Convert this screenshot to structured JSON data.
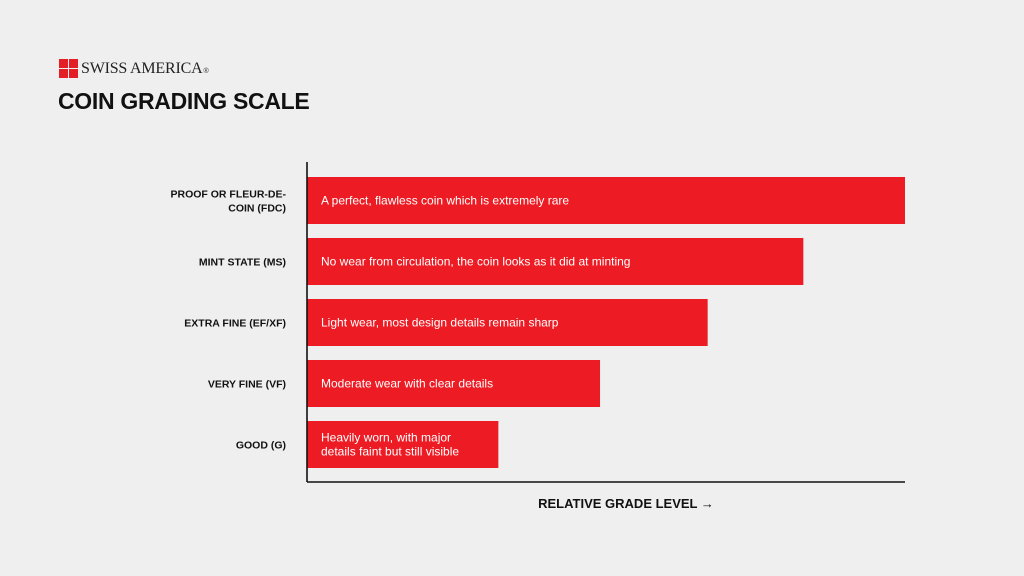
{
  "brand": {
    "name": "SWISS AMERICA",
    "mark_colors": [
      "#e31e24",
      "#e31e24",
      "#e31e24",
      "#e31e24"
    ]
  },
  "title": "COIN GRADING SCALE",
  "colors": {
    "bar": "#ed1c24",
    "axis": "#111111",
    "background": "#efefef"
  },
  "chart_data": {
    "type": "bar",
    "orientation": "horizontal",
    "title": "COIN GRADING SCALE",
    "xlabel": "RELATIVE GRADE LEVEL →",
    "ylabel": "",
    "xlim": [
      0,
      100
    ],
    "grid": false,
    "categories": [
      "PROOF OR FLEUR-DE-COIN (FDC)",
      "MINT STATE (MS)",
      "EXTRA FINE (EF/XF)",
      "VERY FINE (VF)",
      "GOOD (G)"
    ],
    "category_lines": [
      [
        "PROOF OR FLEUR-DE-",
        "COIN (FDC)"
      ],
      [
        "MINT STATE (MS)"
      ],
      [
        "EXTRA FINE (EF/XF)"
      ],
      [
        "VERY FINE (VF)"
      ],
      [
        "GOOD (G)"
      ]
    ],
    "values": [
      100,
      83,
      67,
      49,
      32
    ],
    "bar_labels": [
      [
        "A perfect, flawless coin which is extremely rare"
      ],
      [
        "No wear from circulation, the coin looks as it did at minting"
      ],
      [
        "Light wear, most design details remain sharp"
      ],
      [
        "Moderate wear with clear details"
      ],
      [
        "Heavily worn, with major",
        "details faint but still visible"
      ]
    ]
  }
}
